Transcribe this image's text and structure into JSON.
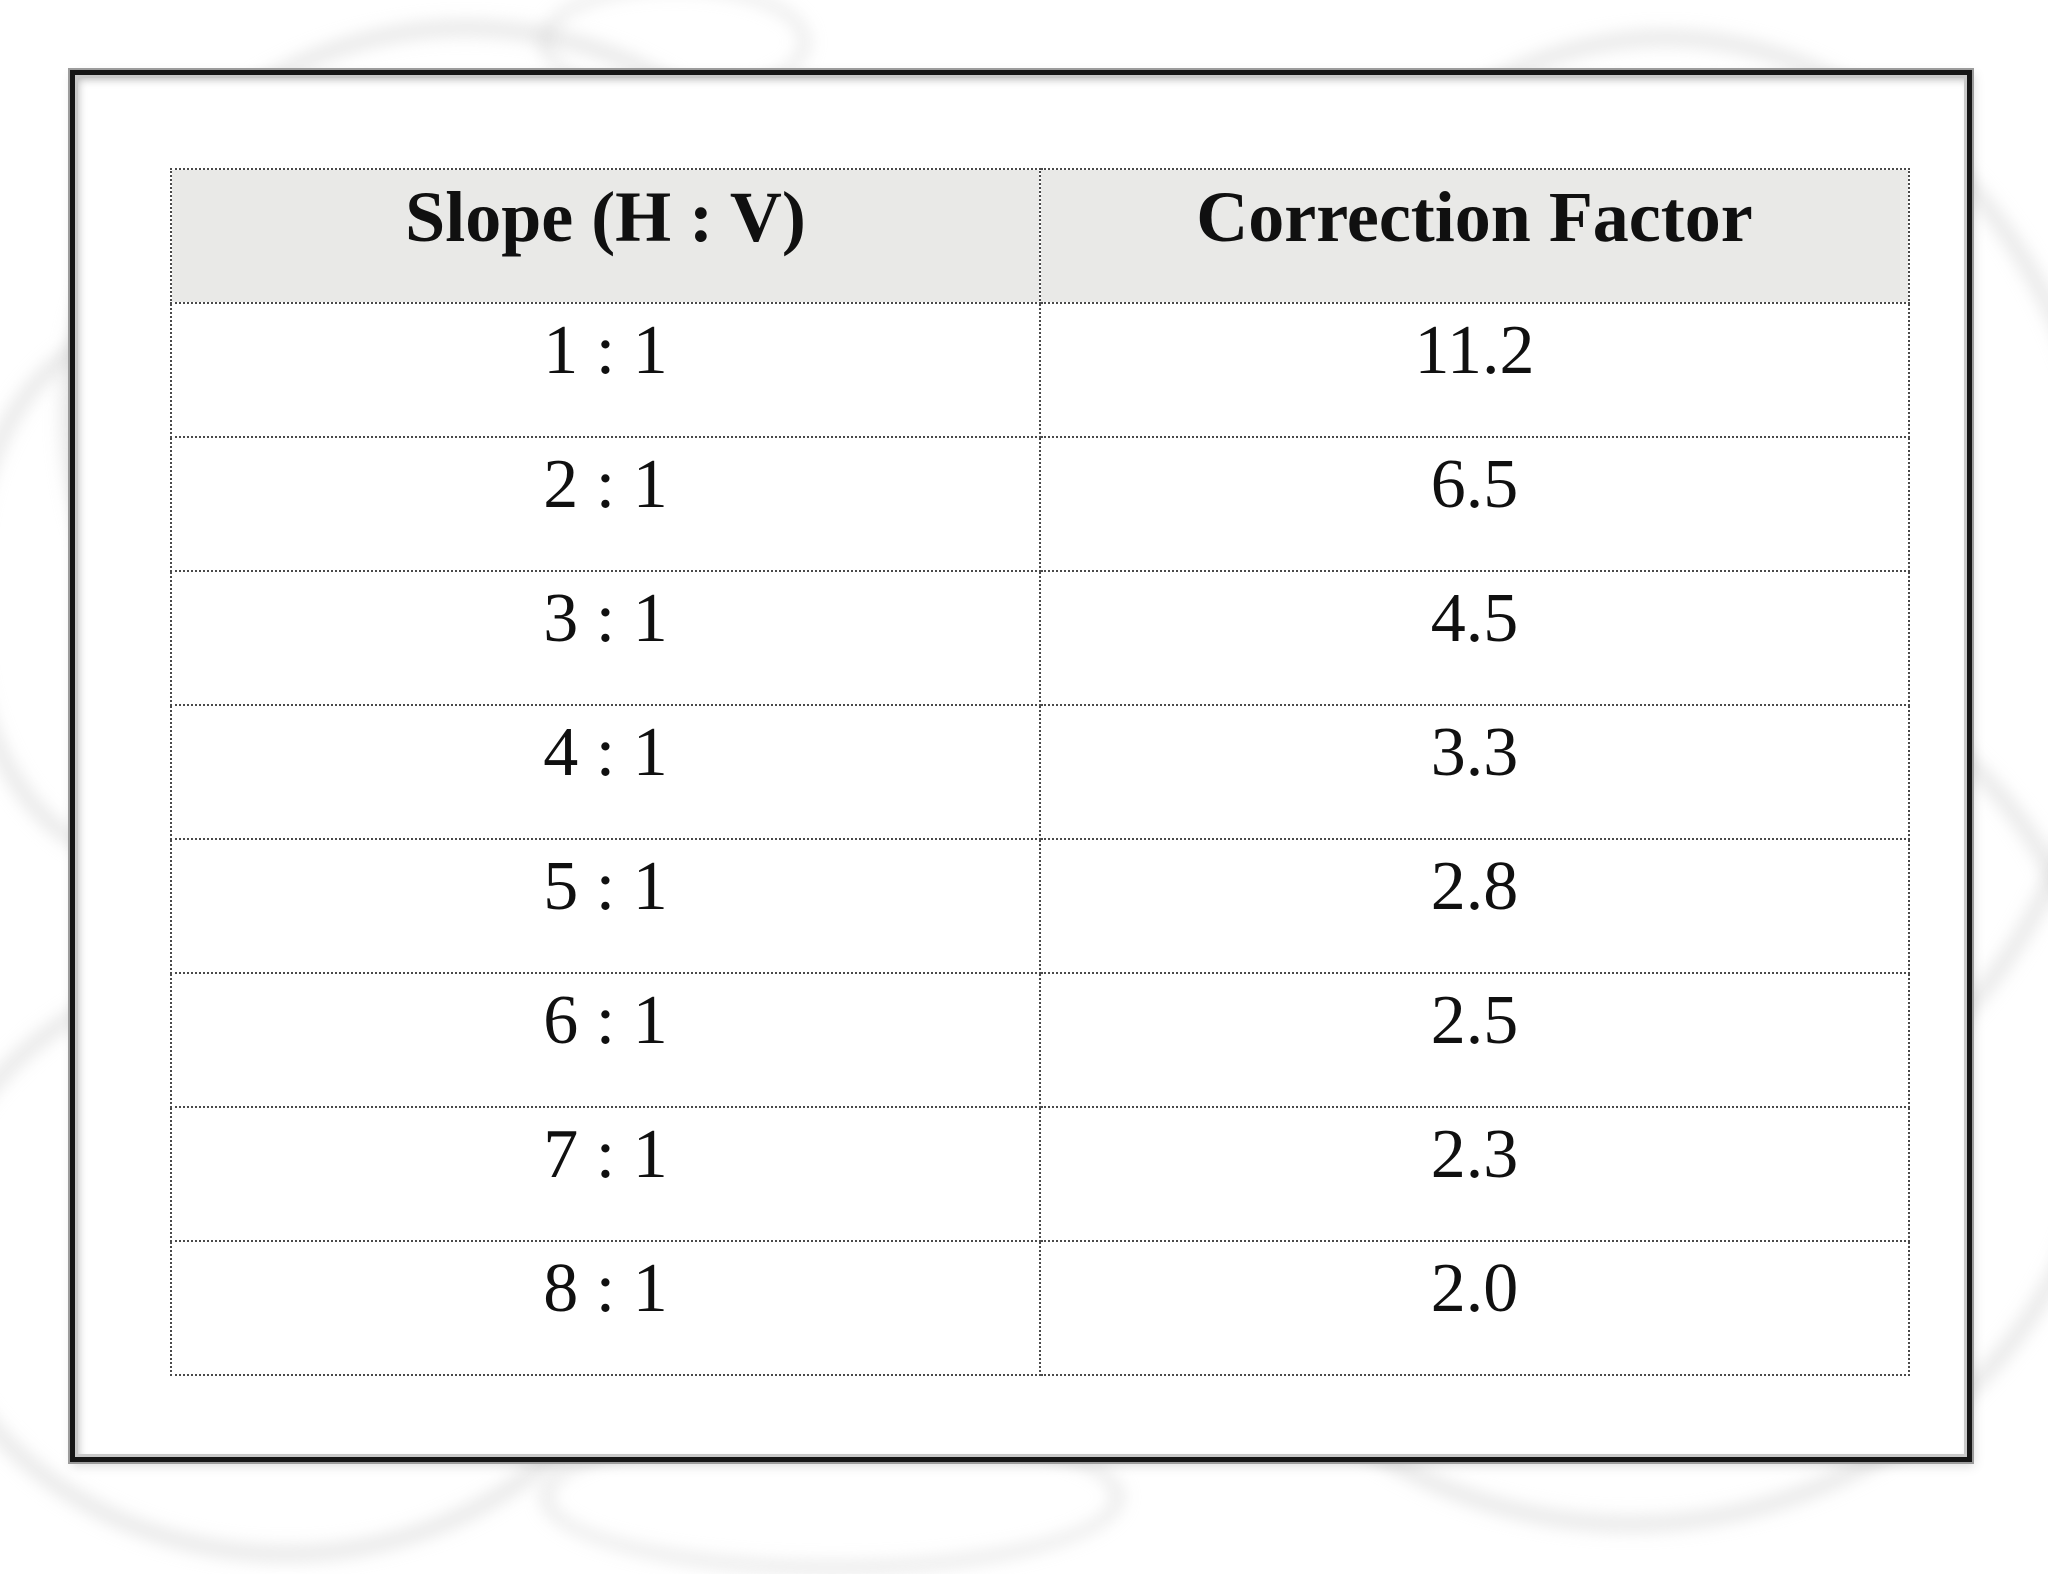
{
  "table": {
    "columns": [
      "Slope (H : V)",
      "Correction Factor"
    ],
    "rows": [
      {
        "slope": "1 : 1",
        "factor": "11.2"
      },
      {
        "slope": "2 : 1",
        "factor": "6.5"
      },
      {
        "slope": "3 : 1",
        "factor": "4.5"
      },
      {
        "slope": "4 : 1",
        "factor": "3.3"
      },
      {
        "slope": "5 : 1",
        "factor": "2.8"
      },
      {
        "slope": "6 : 1",
        "factor": "2.5"
      },
      {
        "slope": "7 : 1",
        "factor": "2.3"
      },
      {
        "slope": "8 : 1",
        "factor": "2.0"
      }
    ]
  },
  "chart_data": {
    "type": "table",
    "columns": [
      "Slope (H : V)",
      "Correction Factor"
    ],
    "rows": [
      [
        "1 : 1",
        11.2
      ],
      [
        "2 : 1",
        6.5
      ],
      [
        "3 : 1",
        4.5
      ],
      [
        "4 : 1",
        3.3
      ],
      [
        "5 : 1",
        2.8
      ],
      [
        "6 : 1",
        2.5
      ],
      [
        "7 : 1",
        2.3
      ],
      [
        "8 : 1",
        2.0
      ]
    ]
  },
  "colors": {
    "header_bg": "#e9e9e7",
    "table_border": "#4a4a4a",
    "frame_dark": "#161616",
    "frame_light": "#9c9c9c",
    "text": "#101010",
    "flourish": "#cdcdcd"
  }
}
